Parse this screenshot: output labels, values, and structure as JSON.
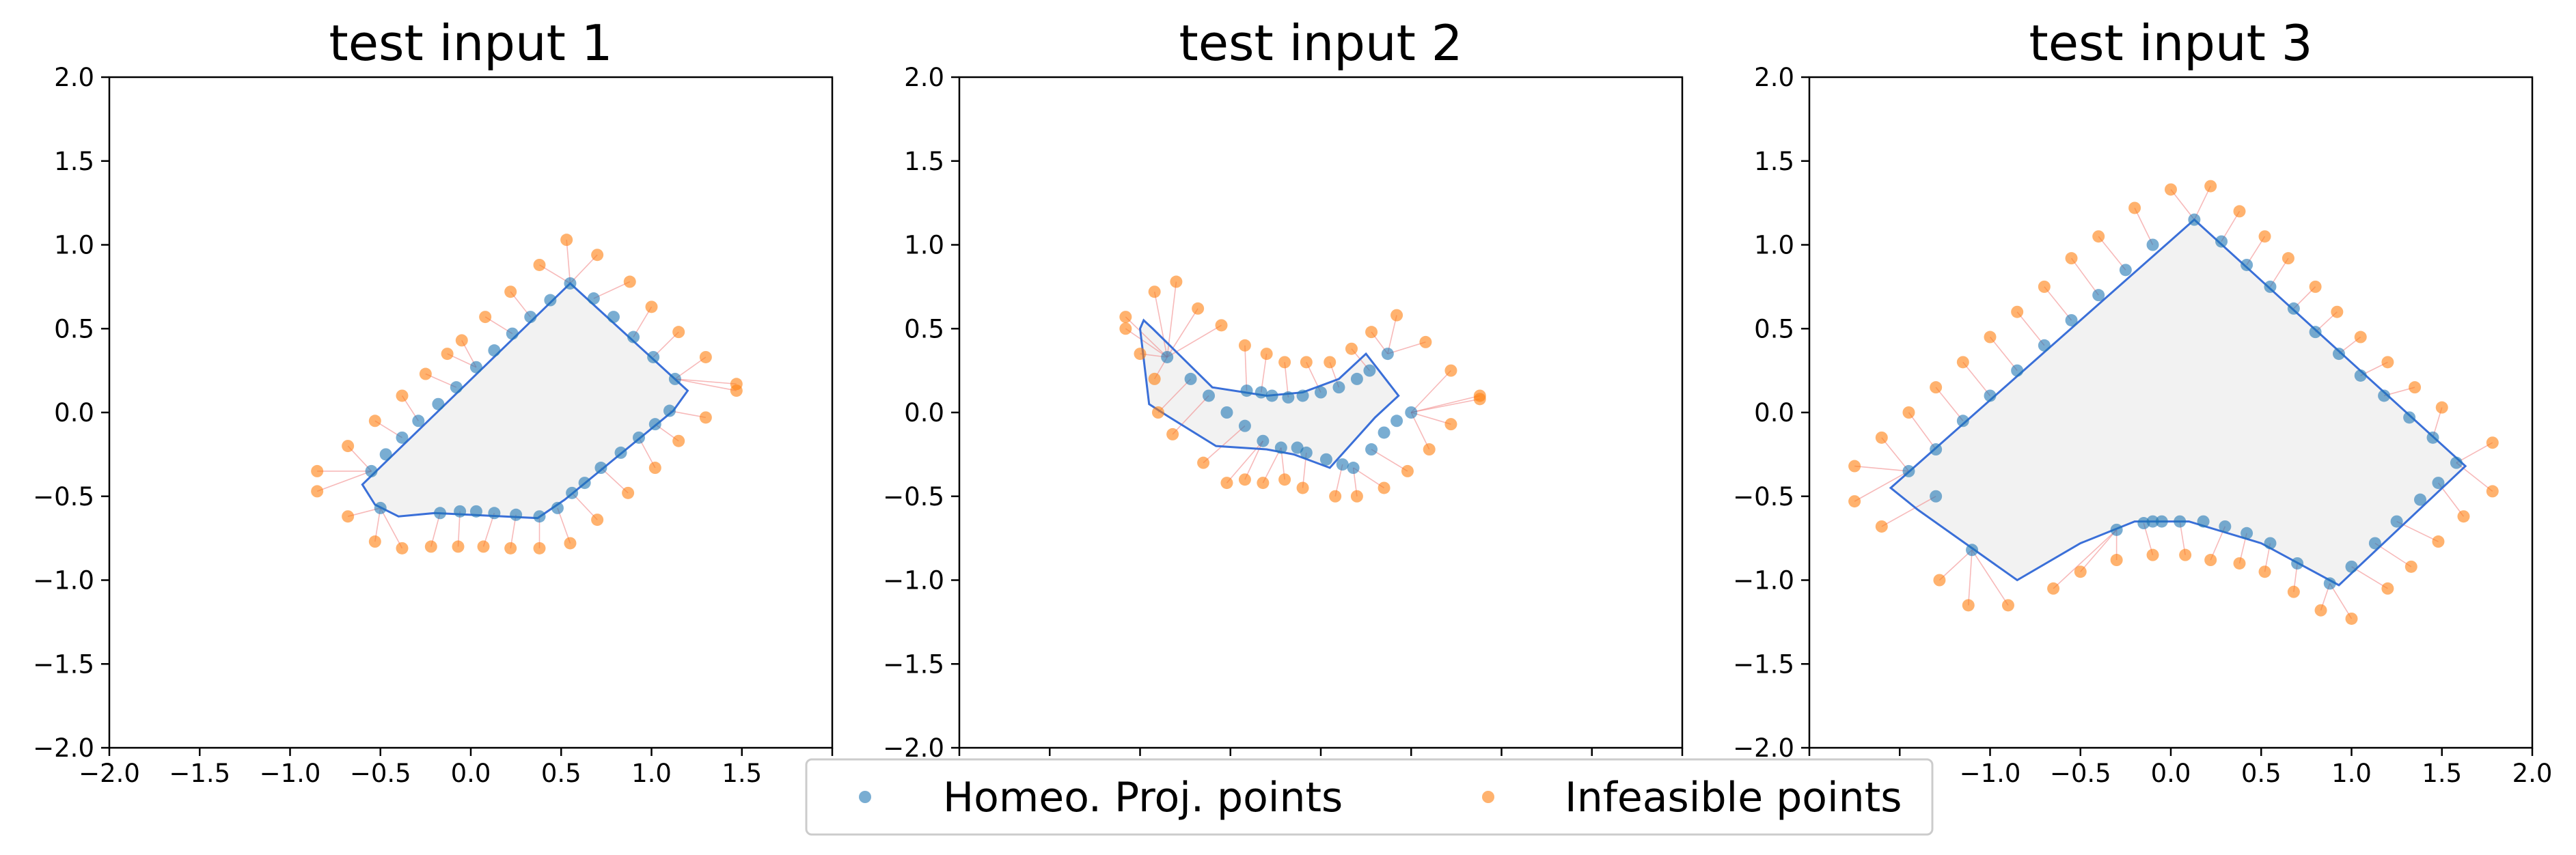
{
  "colors": {
    "projection": "#1f77b4",
    "infeasible": "#ff7f0e",
    "boundary": "#3a6fd8",
    "fill": "#f2f2f2",
    "connector": "#f08080"
  },
  "legend": {
    "items": [
      "Homeo. Proj. points",
      "Infeasible points"
    ],
    "placement": "bottom-center"
  },
  "chart_data": [
    {
      "type": "scatter",
      "title": "test input 1",
      "xlim": [
        -2.0,
        2.0
      ],
      "ylim": [
        -2.0,
        2.0
      ],
      "xticks": [
        "−2.0",
        "−1.5",
        "−1.0",
        "−0.5",
        "0.0",
        "0.5",
        "1.0",
        "1.5",
        "2.0"
      ],
      "yticks": [
        "−2.0",
        "−1.5",
        "−1.0",
        "−0.5",
        "0.0",
        "0.5",
        "1.0",
        "1.5",
        "2.0"
      ],
      "grid": false,
      "region": [
        [
          -0.6,
          -0.43
        ],
        [
          0.55,
          0.77
        ],
        [
          1.2,
          0.13
        ],
        [
          1.12,
          0.01
        ],
        [
          0.52,
          -0.52
        ],
        [
          0.37,
          -0.63
        ],
        [
          -0.2,
          -0.6
        ],
        [
          -0.4,
          -0.62
        ],
        [
          -0.53,
          -0.55
        ]
      ],
      "series": [
        {
          "name": "Homeo. Proj. points",
          "points": [
            [
              -0.55,
              -0.35
            ],
            [
              -0.47,
              -0.25
            ],
            [
              -0.38,
              -0.15
            ],
            [
              -0.29,
              -0.05
            ],
            [
              -0.18,
              0.05
            ],
            [
              -0.08,
              0.15
            ],
            [
              0.03,
              0.27
            ],
            [
              0.13,
              0.37
            ],
            [
              0.23,
              0.47
            ],
            [
              0.33,
              0.57
            ],
            [
              0.44,
              0.67
            ],
            [
              0.55,
              0.77
            ],
            [
              0.68,
              0.68
            ],
            [
              0.79,
              0.57
            ],
            [
              0.9,
              0.45
            ],
            [
              1.01,
              0.33
            ],
            [
              1.13,
              0.2
            ],
            [
              1.1,
              0.01
            ],
            [
              1.02,
              -0.07
            ],
            [
              0.93,
              -0.15
            ],
            [
              0.83,
              -0.24
            ],
            [
              0.72,
              -0.33
            ],
            [
              0.63,
              -0.42
            ],
            [
              0.56,
              -0.48
            ],
            [
              0.48,
              -0.57
            ],
            [
              0.38,
              -0.62
            ],
            [
              0.25,
              -0.61
            ],
            [
              0.13,
              -0.6
            ],
            [
              0.03,
              -0.59
            ],
            [
              -0.06,
              -0.59
            ],
            [
              -0.17,
              -0.6
            ],
            [
              -0.5,
              -0.57
            ]
          ]
        },
        {
          "name": "Infeasible points",
          "points": [
            [
              -0.85,
              -0.35
            ],
            [
              -0.85,
              -0.47
            ],
            [
              -0.68,
              -0.2
            ],
            [
              -0.53,
              -0.05
            ],
            [
              -0.38,
              0.1
            ],
            [
              -0.25,
              0.23
            ],
            [
              -0.13,
              0.35
            ],
            [
              -0.05,
              0.43
            ],
            [
              0.08,
              0.57
            ],
            [
              0.22,
              0.72
            ],
            [
              0.38,
              0.88
            ],
            [
              0.53,
              1.03
            ],
            [
              0.7,
              0.94
            ],
            [
              0.88,
              0.78
            ],
            [
              1.0,
              0.63
            ],
            [
              1.15,
              0.48
            ],
            [
              1.3,
              0.33
            ],
            [
              1.47,
              0.17
            ],
            [
              1.47,
              0.13
            ],
            [
              1.3,
              -0.03
            ],
            [
              1.15,
              -0.17
            ],
            [
              1.02,
              -0.33
            ],
            [
              0.87,
              -0.48
            ],
            [
              0.7,
              -0.64
            ],
            [
              0.55,
              -0.78
            ],
            [
              0.38,
              -0.81
            ],
            [
              0.22,
              -0.81
            ],
            [
              0.07,
              -0.8
            ],
            [
              -0.07,
              -0.8
            ],
            [
              -0.22,
              -0.8
            ],
            [
              -0.38,
              -0.81
            ],
            [
              -0.53,
              -0.77
            ],
            [
              -0.68,
              -0.62
            ]
          ]
        }
      ]
    },
    {
      "type": "scatter",
      "title": "test input 2",
      "xlim": [
        -2.0,
        2.0
      ],
      "ylim": [
        -2.0,
        2.0
      ],
      "xticks": [
        "−2.0",
        "−1.5",
        "−1.0",
        "−0.5",
        "0.0",
        "0.5",
        "1.0",
        "1.5",
        "2.0"
      ],
      "yticks": [
        "−2.0",
        "−1.5",
        "−1.0",
        "−0.5",
        "0.0",
        "0.5",
        "1.0",
        "1.5",
        "2.0"
      ],
      "grid": false,
      "region": [
        [
          -0.98,
          0.55
        ],
        [
          -0.93,
          0.5
        ],
        [
          -0.6,
          0.15
        ],
        [
          -0.3,
          0.1
        ],
        [
          -0.1,
          0.12
        ],
        [
          0.1,
          0.2
        ],
        [
          0.25,
          0.35
        ],
        [
          0.43,
          0.1
        ],
        [
          0.3,
          -0.03
        ],
        [
          0.05,
          -0.33
        ],
        [
          -0.15,
          -0.25
        ],
        [
          -0.3,
          -0.22
        ],
        [
          -0.58,
          -0.2
        ],
        [
          -0.85,
          -0.02
        ],
        [
          -0.95,
          0.05
        ],
        [
          -1.0,
          0.5
        ]
      ],
      "series": [
        {
          "name": "Homeo. Proj. points",
          "points": [
            [
              -0.72,
              0.2
            ],
            [
              -0.62,
              0.1
            ],
            [
              -0.52,
              0.0
            ],
            [
              -0.42,
              -0.08
            ],
            [
              -0.32,
              -0.17
            ],
            [
              -0.22,
              -0.21
            ],
            [
              -0.13,
              -0.21
            ],
            [
              -0.08,
              -0.24
            ],
            [
              0.03,
              -0.28
            ],
            [
              0.12,
              -0.31
            ],
            [
              0.18,
              -0.33
            ],
            [
              0.28,
              -0.22
            ],
            [
              0.35,
              -0.12
            ],
            [
              0.42,
              -0.05
            ],
            [
              0.5,
              0.0
            ],
            [
              0.0,
              0.12
            ],
            [
              -0.1,
              0.1
            ],
            [
              -0.18,
              0.09
            ],
            [
              -0.27,
              0.1
            ],
            [
              -0.33,
              0.12
            ],
            [
              -0.41,
              0.13
            ],
            [
              0.1,
              0.15
            ],
            [
              0.2,
              0.2
            ],
            [
              0.27,
              0.25
            ],
            [
              0.37,
              0.35
            ],
            [
              -0.85,
              0.33
            ]
          ]
        },
        {
          "name": "Infeasible points",
          "points": [
            [
              -1.08,
              0.57
            ],
            [
              -1.08,
              0.5
            ],
            [
              -0.92,
              0.72
            ],
            [
              -0.8,
              0.78
            ],
            [
              -0.68,
              0.62
            ],
            [
              -0.55,
              0.52
            ],
            [
              -0.42,
              0.4
            ],
            [
              -0.3,
              0.35
            ],
            [
              -0.2,
              0.3
            ],
            [
              -0.08,
              0.3
            ],
            [
              0.05,
              0.3
            ],
            [
              0.17,
              0.38
            ],
            [
              0.28,
              0.48
            ],
            [
              0.42,
              0.58
            ],
            [
              0.58,
              0.42
            ],
            [
              0.72,
              0.25
            ],
            [
              0.88,
              0.1
            ],
            [
              0.88,
              0.08
            ],
            [
              0.72,
              -0.07
            ],
            [
              0.6,
              -0.22
            ],
            [
              0.48,
              -0.35
            ],
            [
              0.35,
              -0.45
            ],
            [
              0.2,
              -0.5
            ],
            [
              0.08,
              -0.5
            ],
            [
              -0.1,
              -0.45
            ],
            [
              -0.2,
              -0.4
            ],
            [
              -0.32,
              -0.42
            ],
            [
              -0.42,
              -0.4
            ],
            [
              -0.52,
              -0.42
            ],
            [
              -0.65,
              -0.3
            ],
            [
              -0.82,
              -0.13
            ],
            [
              -0.9,
              0.0
            ],
            [
              -0.92,
              0.2
            ],
            [
              -1.0,
              0.35
            ]
          ]
        }
      ]
    },
    {
      "type": "scatter",
      "title": "test input 3",
      "xlim": [
        -2.0,
        2.0
      ],
      "ylim": [
        -2.0,
        2.0
      ],
      "xticks": [
        "−2.0",
        "−1.5",
        "−1.0",
        "−0.5",
        "0.0",
        "0.5",
        "1.0",
        "1.5",
        "2.0"
      ],
      "yticks": [
        "−2.0",
        "−1.5",
        "−1.0",
        "−0.5",
        "0.0",
        "0.5",
        "1.0",
        "1.5",
        "2.0"
      ],
      "grid": false,
      "region": [
        [
          -1.55,
          -0.45
        ],
        [
          0.13,
          1.15
        ],
        [
          1.63,
          -0.32
        ],
        [
          0.93,
          -1.03
        ],
        [
          0.5,
          -0.78
        ],
        [
          0.1,
          -0.65
        ],
        [
          -0.2,
          -0.65
        ],
        [
          -0.5,
          -0.78
        ],
        [
          -0.85,
          -1.0
        ],
        [
          -1.4,
          -0.58
        ]
      ],
      "series": [
        {
          "name": "Homeo. Proj. points",
          "points": [
            [
              -1.45,
              -0.35
            ],
            [
              -1.3,
              -0.22
            ],
            [
              -1.15,
              -0.05
            ],
            [
              -1.0,
              0.1
            ],
            [
              -0.85,
              0.25
            ],
            [
              -0.7,
              0.4
            ],
            [
              -0.55,
              0.55
            ],
            [
              -0.4,
              0.7
            ],
            [
              -0.25,
              0.85
            ],
            [
              -0.1,
              1.0
            ],
            [
              0.13,
              1.15
            ],
            [
              0.28,
              1.02
            ],
            [
              0.42,
              0.88
            ],
            [
              0.55,
              0.75
            ],
            [
              0.68,
              0.62
            ],
            [
              0.8,
              0.48
            ],
            [
              0.93,
              0.35
            ],
            [
              1.05,
              0.22
            ],
            [
              1.18,
              0.1
            ],
            [
              1.32,
              -0.03
            ],
            [
              1.45,
              -0.15
            ],
            [
              1.58,
              -0.3
            ],
            [
              1.48,
              -0.42
            ],
            [
              1.38,
              -0.52
            ],
            [
              1.25,
              -0.65
            ],
            [
              1.13,
              -0.78
            ],
            [
              1.0,
              -0.92
            ],
            [
              0.88,
              -1.02
            ],
            [
              0.7,
              -0.9
            ],
            [
              0.55,
              -0.78
            ],
            [
              0.42,
              -0.72
            ],
            [
              0.3,
              -0.68
            ],
            [
              0.18,
              -0.65
            ],
            [
              0.05,
              -0.65
            ],
            [
              -0.05,
              -0.65
            ],
            [
              -0.1,
              -0.65
            ],
            [
              -0.15,
              -0.66
            ],
            [
              -0.3,
              -0.7
            ],
            [
              -1.1,
              -0.82
            ],
            [
              -1.3,
              -0.5
            ]
          ]
        },
        {
          "name": "Infeasible points",
          "points": [
            [
              -1.75,
              -0.32
            ],
            [
              -1.75,
              -0.53
            ],
            [
              -1.6,
              -0.15
            ],
            [
              -1.45,
              0.0
            ],
            [
              -1.3,
              0.15
            ],
            [
              -1.15,
              0.3
            ],
            [
              -1.0,
              0.45
            ],
            [
              -0.85,
              0.6
            ],
            [
              -0.7,
              0.75
            ],
            [
              -0.55,
              0.92
            ],
            [
              -0.4,
              1.05
            ],
            [
              -0.2,
              1.22
            ],
            [
              0.0,
              1.33
            ],
            [
              0.22,
              1.35
            ],
            [
              0.38,
              1.2
            ],
            [
              0.52,
              1.05
            ],
            [
              0.65,
              0.92
            ],
            [
              0.8,
              0.75
            ],
            [
              0.92,
              0.6
            ],
            [
              1.05,
              0.45
            ],
            [
              1.2,
              0.3
            ],
            [
              1.35,
              0.15
            ],
            [
              1.5,
              0.03
            ],
            [
              1.78,
              -0.18
            ],
            [
              1.78,
              -0.47
            ],
            [
              1.62,
              -0.62
            ],
            [
              1.48,
              -0.77
            ],
            [
              1.33,
              -0.92
            ],
            [
              1.2,
              -1.05
            ],
            [
              1.0,
              -1.23
            ],
            [
              0.83,
              -1.18
            ],
            [
              0.68,
              -1.07
            ],
            [
              0.52,
              -0.95
            ],
            [
              0.38,
              -0.9
            ],
            [
              0.22,
              -0.88
            ],
            [
              0.08,
              -0.85
            ],
            [
              -0.1,
              -0.85
            ],
            [
              -0.3,
              -0.88
            ],
            [
              -0.5,
              -0.95
            ],
            [
              -0.65,
              -1.05
            ],
            [
              -0.9,
              -1.15
            ],
            [
              -1.12,
              -1.15
            ],
            [
              -1.28,
              -1.0
            ],
            [
              -1.6,
              -0.68
            ]
          ]
        }
      ]
    }
  ]
}
